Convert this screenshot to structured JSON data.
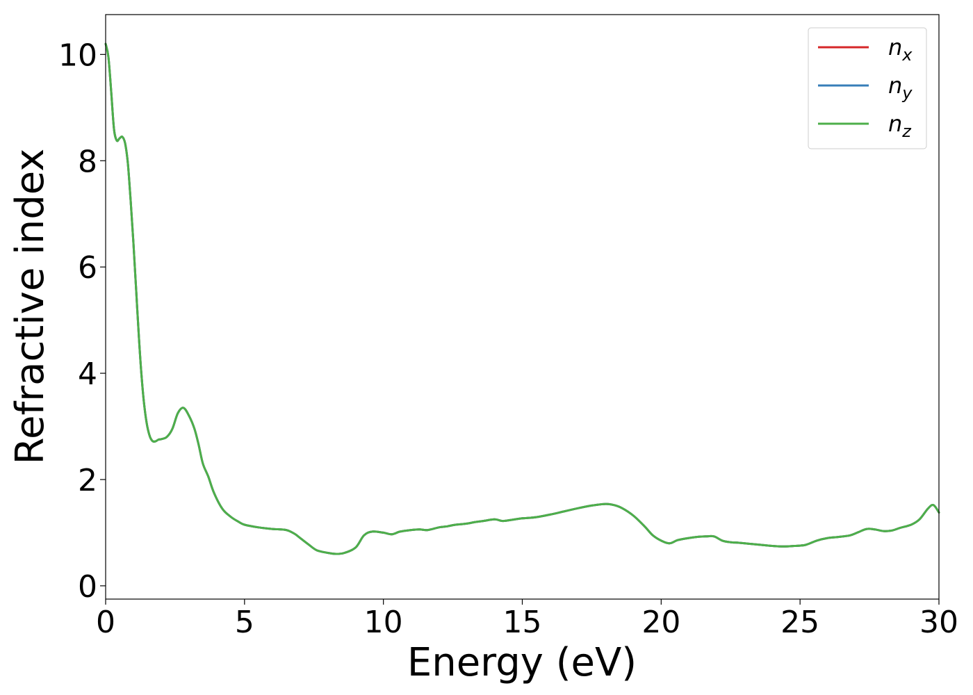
{
  "chart_data": {
    "type": "line",
    "title": "",
    "xlabel": "Energy (eV)",
    "ylabel": "Refractive index",
    "xlim": [
      0,
      30
    ],
    "ylim": [
      -0.25,
      10.75
    ],
    "xticks": [
      0,
      5,
      10,
      15,
      20,
      25,
      30
    ],
    "yticks": [
      0,
      2,
      4,
      6,
      8,
      10
    ],
    "xtick_labels": [
      "0",
      "5",
      "10",
      "15",
      "20",
      "25",
      "30"
    ],
    "ytick_labels": [
      "0",
      "2",
      "4",
      "6",
      "8",
      "10"
    ],
    "grid": false,
    "legend_position": "top-right",
    "x": [
      0,
      0.1,
      0.2,
      0.3,
      0.4,
      0.5,
      0.6,
      0.7,
      0.8,
      0.9,
      1.0,
      1.1,
      1.2,
      1.3,
      1.4,
      1.5,
      1.6,
      1.7,
      1.8,
      1.9,
      2.0,
      2.2,
      2.4,
      2.6,
      2.8,
      3.0,
      3.2,
      3.35,
      3.5,
      3.7,
      3.9,
      4.2,
      4.5,
      4.8,
      5.0,
      5.5,
      6.0,
      6.5,
      6.8,
      7.0,
      7.3,
      7.6,
      8.0,
      8.3,
      8.6,
      9.0,
      9.3,
      9.6,
      10.0,
      10.3,
      10.6,
      11.0,
      11.3,
      11.6,
      12.0,
      12.3,
      12.6,
      13.0,
      13.3,
      13.6,
      14.0,
      14.3,
      14.6,
      15.0,
      15.3,
      15.6,
      16.0,
      16.5,
      17.0,
      17.5,
      18.0,
      18.3,
      18.6,
      19.0,
      19.4,
      19.7,
      20.0,
      20.3,
      20.6,
      21.0,
      21.3,
      21.6,
      21.9,
      22.2,
      22.5,
      22.8,
      23.2,
      23.6,
      24.0,
      24.4,
      24.8,
      25.2,
      25.6,
      26.0,
      26.4,
      26.8,
      27.1,
      27.4,
      27.7,
      28.0,
      28.3,
      28.6,
      29.0,
      29.3,
      29.6,
      29.8,
      30.0
    ],
    "series": [
      {
        "name": "n_x",
        "label": "x",
        "color": "#d62728",
        "values": [
          10.2,
          9.95,
          9.3,
          8.6,
          8.38,
          8.42,
          8.45,
          8.33,
          7.95,
          7.25,
          6.45,
          5.55,
          4.65,
          3.9,
          3.35,
          3.0,
          2.8,
          2.72,
          2.72,
          2.75,
          2.76,
          2.8,
          2.95,
          3.25,
          3.35,
          3.2,
          2.95,
          2.65,
          2.3,
          2.05,
          1.75,
          1.45,
          1.3,
          1.2,
          1.15,
          1.1,
          1.07,
          1.05,
          0.98,
          0.9,
          0.78,
          0.67,
          0.62,
          0.6,
          0.62,
          0.72,
          0.95,
          1.02,
          1.0,
          0.97,
          1.02,
          1.05,
          1.06,
          1.05,
          1.1,
          1.12,
          1.15,
          1.17,
          1.2,
          1.22,
          1.25,
          1.22,
          1.24,
          1.27,
          1.28,
          1.3,
          1.34,
          1.4,
          1.46,
          1.51,
          1.54,
          1.52,
          1.46,
          1.32,
          1.12,
          0.95,
          0.85,
          0.8,
          0.86,
          0.9,
          0.92,
          0.93,
          0.93,
          0.85,
          0.82,
          0.81,
          0.79,
          0.77,
          0.75,
          0.74,
          0.75,
          0.77,
          0.85,
          0.9,
          0.92,
          0.95,
          1.01,
          1.07,
          1.06,
          1.03,
          1.04,
          1.09,
          1.15,
          1.25,
          1.45,
          1.52,
          1.38
        ]
      },
      {
        "name": "n_y",
        "label": "y",
        "color": "#377eb8",
        "values": [
          10.2,
          9.95,
          9.3,
          8.6,
          8.38,
          8.42,
          8.45,
          8.33,
          7.95,
          7.25,
          6.45,
          5.55,
          4.65,
          3.9,
          3.35,
          3.0,
          2.8,
          2.72,
          2.72,
          2.75,
          2.76,
          2.8,
          2.95,
          3.25,
          3.35,
          3.2,
          2.95,
          2.65,
          2.3,
          2.05,
          1.75,
          1.45,
          1.3,
          1.2,
          1.15,
          1.1,
          1.07,
          1.05,
          0.98,
          0.9,
          0.78,
          0.67,
          0.62,
          0.6,
          0.62,
          0.72,
          0.95,
          1.02,
          1.0,
          0.97,
          1.02,
          1.05,
          1.06,
          1.05,
          1.1,
          1.12,
          1.15,
          1.17,
          1.2,
          1.22,
          1.25,
          1.22,
          1.24,
          1.27,
          1.28,
          1.3,
          1.34,
          1.4,
          1.46,
          1.51,
          1.54,
          1.52,
          1.46,
          1.32,
          1.12,
          0.95,
          0.85,
          0.8,
          0.86,
          0.9,
          0.92,
          0.93,
          0.93,
          0.85,
          0.82,
          0.81,
          0.79,
          0.77,
          0.75,
          0.74,
          0.75,
          0.77,
          0.85,
          0.9,
          0.92,
          0.95,
          1.01,
          1.07,
          1.06,
          1.03,
          1.04,
          1.09,
          1.15,
          1.25,
          1.45,
          1.52,
          1.38
        ]
      },
      {
        "name": "n_z",
        "label": "z",
        "color": "#4daf4a",
        "values": [
          10.2,
          9.95,
          9.3,
          8.6,
          8.38,
          8.42,
          8.45,
          8.33,
          7.95,
          7.25,
          6.45,
          5.55,
          4.65,
          3.9,
          3.35,
          3.0,
          2.8,
          2.72,
          2.72,
          2.75,
          2.76,
          2.8,
          2.95,
          3.25,
          3.35,
          3.2,
          2.95,
          2.65,
          2.3,
          2.05,
          1.75,
          1.45,
          1.3,
          1.2,
          1.15,
          1.1,
          1.07,
          1.05,
          0.98,
          0.9,
          0.78,
          0.67,
          0.62,
          0.6,
          0.62,
          0.72,
          0.95,
          1.02,
          1.0,
          0.97,
          1.02,
          1.05,
          1.06,
          1.05,
          1.1,
          1.12,
          1.15,
          1.17,
          1.2,
          1.22,
          1.25,
          1.22,
          1.24,
          1.27,
          1.28,
          1.3,
          1.34,
          1.4,
          1.46,
          1.51,
          1.54,
          1.52,
          1.46,
          1.32,
          1.12,
          0.95,
          0.85,
          0.8,
          0.86,
          0.9,
          0.92,
          0.93,
          0.93,
          0.85,
          0.82,
          0.81,
          0.79,
          0.77,
          0.75,
          0.74,
          0.75,
          0.77,
          0.85,
          0.9,
          0.92,
          0.95,
          1.01,
          1.07,
          1.06,
          1.03,
          1.04,
          1.09,
          1.15,
          1.25,
          1.45,
          1.52,
          1.38
        ]
      }
    ]
  }
}
